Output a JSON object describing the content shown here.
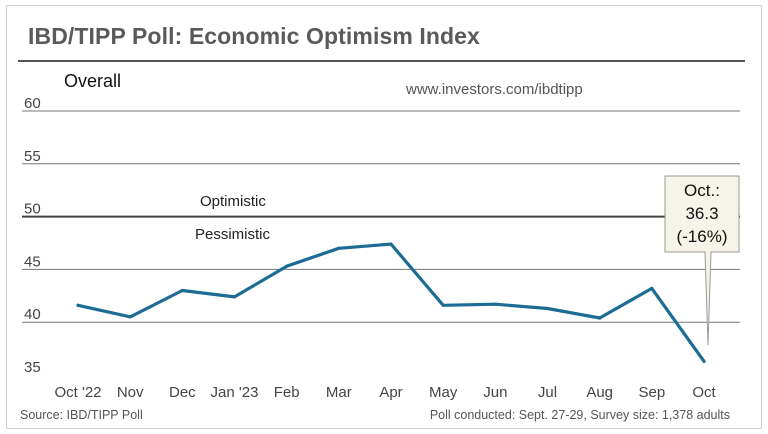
{
  "header": {
    "title": "IBD/TIPP Poll: Economic Optimism Index",
    "overall_label": "Overall",
    "url": "www.investors.com/ibdtipp"
  },
  "zones": {
    "optimistic": "Optimistic",
    "pessimistic": "Pessimistic"
  },
  "callout": {
    "line1": "Oct.:",
    "line2": "36.3",
    "line3": "(-16%)"
  },
  "footer": {
    "source": "Source: IBD/TIPP Poll",
    "survey": "Poll conducted: Sept. 27-29,  Survey size: 1,378 adults"
  },
  "colors": {
    "series": "#1c6c94",
    "threshold": "#444444",
    "grid": "#777777",
    "callout_fill": "#f6f3e8"
  },
  "chart_data": {
    "type": "line",
    "title": "IBD/TIPP Poll: Economic Optimism Index",
    "categories": [
      "Oct '22",
      "Nov",
      "Dec",
      "Jan '23",
      "Feb",
      "Mar",
      "Apr",
      "May",
      "Jun",
      "Jul",
      "Aug",
      "Sep",
      "Oct"
    ],
    "series": [
      {
        "name": "Overall",
        "values": [
          41.6,
          40.5,
          43.0,
          42.4,
          45.3,
          47.0,
          47.4,
          41.6,
          41.7,
          41.3,
          40.4,
          43.2,
          36.3
        ]
      }
    ],
    "ylim": [
      35,
      60
    ],
    "yticks": [
      35,
      40,
      45,
      50,
      55,
      60
    ],
    "threshold": 50,
    "grid": true,
    "xlabel": "",
    "ylabel": ""
  }
}
